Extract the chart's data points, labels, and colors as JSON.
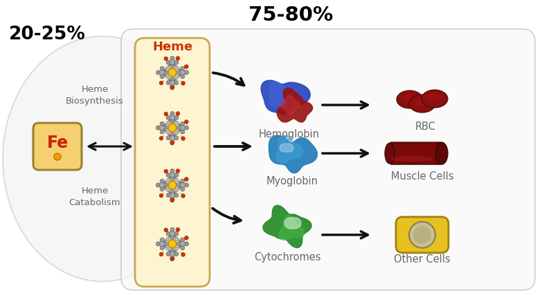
{
  "bg_color": "#ffffff",
  "title_75_80": "75-80%",
  "title_20_25": "20-25%",
  "heme_label": "Heme",
  "heme_biosynthesis": "Heme\nBiosynthesis",
  "heme_catabolism": "Heme\nCatabolism",
  "hemoglobin_label": "Hemoglobin",
  "rbc_label": "RBC",
  "myoglobin_label": "Myoglobin",
  "muscle_label": "Muscle Cells",
  "cytochrome_label": "Cytochromes",
  "other_label": "Other Cells",
  "fe_label": "Fe",
  "outer_box_fc": "#f8f8f8",
  "outer_box_ec": "#bbbbbb",
  "heme_box_fc": "#fdf5d0",
  "heme_box_ec": "#c8a850",
  "fe_box_fc": "#f5d070",
  "fe_box_ec": "#9b8030",
  "heme_title_color": "#cc3300",
  "label_color": "#666666",
  "fe_text_color": "#cc2200",
  "title_color": "#000000",
  "arrow_color": "#111111",
  "rbc_color": "#8b0f0f",
  "muscle_color": "#7a0a0a",
  "other_cell_fc": "#e8c020",
  "other_cell_ec": "#a08010",
  "fig_w": 7.86,
  "fig_h": 4.3,
  "dpi": 100
}
